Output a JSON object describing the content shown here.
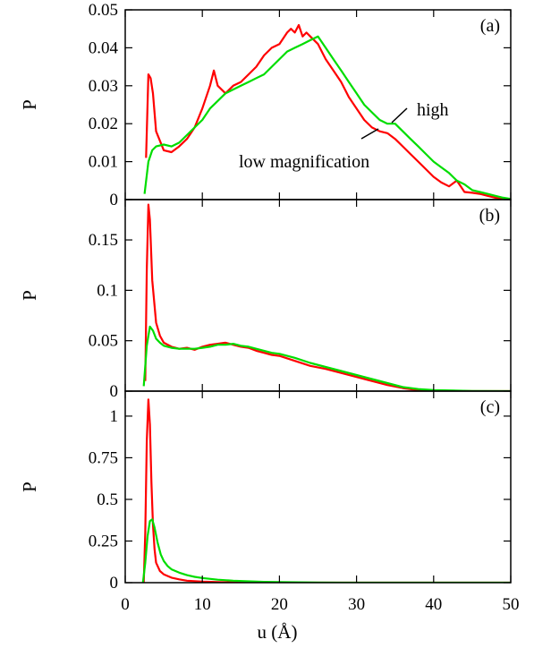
{
  "chart_data": {
    "type": "line",
    "xlabel": "u (Å)",
    "xlim": [
      0,
      50
    ],
    "xticks": [
      "0",
      "10",
      "20",
      "30",
      "40",
      "50"
    ],
    "xtick_values": [
      0,
      10,
      20,
      30,
      40,
      50
    ],
    "series_colors": {
      "red": "#ff0000",
      "green": "#00dd00"
    },
    "annotations": {
      "high": "high",
      "low": "low magnification"
    },
    "panels": [
      {
        "label": "(a)",
        "ylabel": "P",
        "ylim": [
          0,
          0.05
        ],
        "yticks": [
          "0",
          "0.01",
          "0.02",
          "0.03",
          "0.04",
          "0.05"
        ],
        "ytick_values": [
          0,
          0.01,
          0.02,
          0.03,
          0.04,
          0.05
        ],
        "series": [
          {
            "color": "red",
            "x": [
              2.7,
              3.0,
              3.3,
              3.6,
              4,
              5,
              6,
              7,
              8,
              9,
              10,
              11,
              11.5,
              12,
              13,
              14,
              15,
              16,
              17,
              18,
              19,
              20,
              21,
              21.5,
              22,
              22.5,
              23,
              23.5,
              24,
              25,
              26,
              27,
              28,
              29,
              30,
              31,
              32,
              33,
              34,
              35,
              36,
              37,
              38,
              39,
              40,
              41,
              42,
              43,
              44,
              45,
              46,
              47,
              48,
              49,
              50
            ],
            "y": [
              0.011,
              0.033,
              0.032,
              0.028,
              0.018,
              0.013,
              0.0125,
              0.014,
              0.016,
              0.019,
              0.024,
              0.03,
              0.034,
              0.03,
              0.028,
              0.03,
              0.031,
              0.033,
              0.035,
              0.038,
              0.04,
              0.041,
              0.044,
              0.045,
              0.044,
              0.046,
              0.043,
              0.044,
              0.043,
              0.041,
              0.037,
              0.034,
              0.031,
              0.027,
              0.024,
              0.021,
              0.019,
              0.018,
              0.0175,
              0.016,
              0.014,
              0.012,
              0.01,
              0.008,
              0.006,
              0.0045,
              0.0035,
              0.005,
              0.002,
              0.0018,
              0.0015,
              0.001,
              0.0005,
              0.0002,
              0.0
            ]
          },
          {
            "color": "green",
            "x": [
              2.5,
              3.0,
              3.5,
              4,
              5,
              6,
              7,
              8,
              9,
              10,
              11,
              12,
              13,
              14,
              15,
              16,
              17,
              18,
              19,
              20,
              21,
              22,
              23,
              24,
              25,
              26,
              27,
              28,
              29,
              30,
              31,
              32,
              33,
              34,
              35,
              36,
              37,
              38,
              39,
              40,
              41,
              42,
              43,
              44,
              45,
              46,
              47,
              48,
              49,
              50
            ],
            "y": [
              0.0015,
              0.01,
              0.013,
              0.014,
              0.0145,
              0.014,
              0.015,
              0.017,
              0.019,
              0.021,
              0.024,
              0.026,
              0.028,
              0.029,
              0.03,
              0.031,
              0.032,
              0.033,
              0.035,
              0.037,
              0.039,
              0.04,
              0.041,
              0.042,
              0.043,
              0.04,
              0.037,
              0.034,
              0.031,
              0.028,
              0.025,
              0.023,
              0.021,
              0.02,
              0.02,
              0.018,
              0.016,
              0.014,
              0.012,
              0.01,
              0.0085,
              0.007,
              0.005,
              0.004,
              0.0025,
              0.002,
              0.0015,
              0.001,
              0.0005,
              0.0002
            ]
          }
        ]
      },
      {
        "label": "(b)",
        "ylabel": "P",
        "ylim": [
          0,
          0.19
        ],
        "yticks": [
          "0",
          "0.05",
          "0.1",
          "0.15"
        ],
        "ytick_values": [
          0,
          0.05,
          0.1,
          0.15
        ],
        "series": [
          {
            "color": "red",
            "x": [
              2.6,
              2.8,
              3.0,
              3.2,
              3.5,
              4,
              4.5,
              5,
              6,
              7,
              8,
              9,
              10,
              11,
              12,
              13,
              14,
              15,
              16,
              17,
              18,
              19,
              20,
              22,
              24,
              26,
              28,
              30,
              32,
              34,
              36,
              38,
              40,
              45,
              50
            ],
            "y": [
              0.01,
              0.12,
              0.185,
              0.17,
              0.11,
              0.068,
              0.055,
              0.048,
              0.044,
              0.042,
              0.043,
              0.041,
              0.044,
              0.046,
              0.047,
              0.048,
              0.046,
              0.044,
              0.043,
              0.04,
              0.038,
              0.036,
              0.035,
              0.03,
              0.025,
              0.022,
              0.018,
              0.014,
              0.01,
              0.006,
              0.003,
              0.001,
              0.0005,
              0.0,
              0.0
            ]
          },
          {
            "color": "green",
            "x": [
              2.4,
              2.8,
              3.2,
              3.6,
              4.0,
              4.5,
              5,
              6,
              7,
              8,
              9,
              10,
              11,
              12,
              13,
              14,
              15,
              16,
              17,
              18,
              19,
              20,
              22,
              24,
              26,
              28,
              30,
              32,
              34,
              36,
              38,
              40,
              45,
              50
            ],
            "y": [
              0.005,
              0.045,
              0.064,
              0.06,
              0.052,
              0.048,
              0.045,
              0.043,
              0.042,
              0.042,
              0.042,
              0.043,
              0.044,
              0.046,
              0.046,
              0.047,
              0.045,
              0.044,
              0.042,
              0.04,
              0.038,
              0.037,
              0.033,
              0.028,
              0.024,
              0.02,
              0.016,
              0.012,
              0.008,
              0.004,
              0.002,
              0.001,
              0.0002,
              0.0
            ]
          }
        ]
      },
      {
        "label": "(c)",
        "ylabel": "P",
        "ylim": [
          0,
          1.15
        ],
        "yticks": [
          "0",
          "0.25",
          "0.5",
          "0.75",
          "1"
        ],
        "ytick_values": [
          0,
          0.25,
          0.5,
          0.75,
          1
        ],
        "series": [
          {
            "color": "red",
            "x": [
              2.4,
              2.6,
              2.8,
              3.0,
              3.2,
              3.4,
              3.6,
              3.8,
              4.0,
              4.5,
              5,
              6,
              7,
              8,
              10,
              12,
              15,
              20,
              50
            ],
            "y": [
              0.0,
              0.3,
              0.85,
              1.1,
              0.95,
              0.6,
              0.35,
              0.2,
              0.12,
              0.07,
              0.05,
              0.03,
              0.02,
              0.012,
              0.006,
              0.003,
              0.001,
              0.0,
              0.0
            ]
          },
          {
            "color": "green",
            "x": [
              2.3,
              2.6,
              2.9,
              3.2,
              3.5,
              3.8,
              4.2,
              4.6,
              5,
              5.5,
              6,
              7,
              8,
              9,
              10,
              12,
              14,
              16,
              18,
              20,
              25,
              30,
              50
            ],
            "y": [
              0.0,
              0.12,
              0.28,
              0.37,
              0.38,
              0.33,
              0.24,
              0.17,
              0.13,
              0.1,
              0.08,
              0.06,
              0.045,
              0.035,
              0.028,
              0.018,
              0.012,
              0.008,
              0.005,
              0.003,
              0.001,
              0.0,
              0.0
            ]
          }
        ]
      }
    ]
  }
}
